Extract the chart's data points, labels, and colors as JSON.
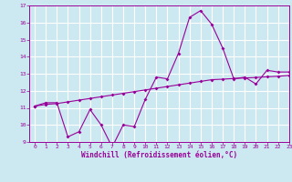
{
  "xlabel": "Windchill (Refroidissement éolien,°C)",
  "bg_color": "#cce8f0",
  "grid_color": "#ffffff",
  "line_color": "#990099",
  "line1_x": [
    0,
    1,
    2,
    3,
    4,
    5,
    6,
    7,
    8,
    9,
    10,
    11,
    12,
    13,
    14,
    15,
    16,
    17,
    18,
    19,
    20,
    21,
    22,
    23
  ],
  "line1_y": [
    11.1,
    11.3,
    11.3,
    9.3,
    9.6,
    10.9,
    10.0,
    8.7,
    10.0,
    9.9,
    11.5,
    12.8,
    12.7,
    14.2,
    16.3,
    16.7,
    15.9,
    14.5,
    12.7,
    12.8,
    12.4,
    13.2,
    13.1,
    13.1
  ],
  "line2_x": [
    0,
    1,
    2,
    3,
    4,
    5,
    6,
    7,
    8,
    9,
    10,
    11,
    12,
    13,
    14,
    15,
    16,
    17,
    18,
    19,
    20,
    21,
    22,
    23
  ],
  "line2_y": [
    11.1,
    11.2,
    11.25,
    11.35,
    11.45,
    11.55,
    11.65,
    11.75,
    11.85,
    11.95,
    12.05,
    12.15,
    12.25,
    12.35,
    12.45,
    12.55,
    12.65,
    12.68,
    12.72,
    12.75,
    12.78,
    12.82,
    12.85,
    12.9
  ],
  "ylim": [
    9,
    17
  ],
  "xlim": [
    -0.5,
    23
  ],
  "yticks": [
    9,
    10,
    11,
    12,
    13,
    14,
    15,
    16,
    17
  ],
  "xticks": [
    0,
    1,
    2,
    3,
    4,
    5,
    6,
    7,
    8,
    9,
    10,
    11,
    12,
    13,
    14,
    15,
    16,
    17,
    18,
    19,
    20,
    21,
    22,
    23
  ]
}
